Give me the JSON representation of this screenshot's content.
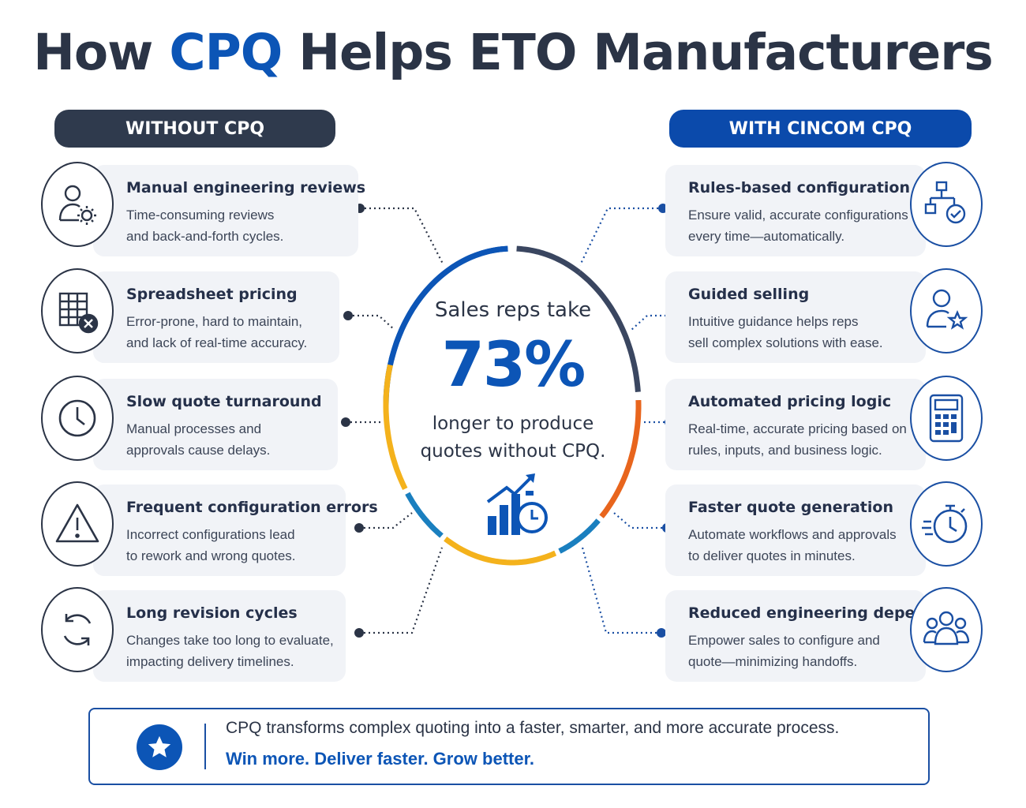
{
  "title": {
    "part1": "How ",
    "accent": "CPQ",
    "part2": " Helps ETO Manufacturers"
  },
  "without_header": "WITHOUT CPQ",
  "with_header": "WITH CINCOM CPQ",
  "without_items": [
    {
      "icon": "person-gear-icon",
      "title": "Manual engineering reviews",
      "line1": "Time-consuming reviews",
      "line2": "and back-and-forth cycles."
    },
    {
      "icon": "spreadsheet-x-icon",
      "title": "Spreadsheet pricing",
      "line1": "Error-prone, hard to maintain,",
      "line2": "and lack of real-time accuracy."
    },
    {
      "icon": "clock-icon",
      "title": "Slow quote turnaround",
      "line1": "Manual processes and",
      "line2": "approvals cause delays."
    },
    {
      "icon": "warning-icon",
      "title": "Frequent configuration errors",
      "line1": "Incorrect configurations lead",
      "line2": "to rework and wrong quotes."
    },
    {
      "icon": "refresh-cycle-icon",
      "title": "Long revision cycles",
      "line1": "Changes take too long to evaluate,",
      "line2": "impacting delivery timelines."
    }
  ],
  "with_items": [
    {
      "icon": "hierarchy-check-icon",
      "title": "Rules-based configuration",
      "line1": "Ensure valid, accurate configurations",
      "line2": "every time—automatically."
    },
    {
      "icon": "person-star-icon",
      "title": "Guided selling",
      "line1": "Intuitive guidance helps reps",
      "line2": "sell complex solutions with ease."
    },
    {
      "icon": "calculator-icon",
      "title": "Automated pricing logic",
      "line1": "Real-time, accurate pricing based on",
      "line2": "rules, inputs, and business logic."
    },
    {
      "icon": "stopwatch-icon",
      "title": "Faster quote generation",
      "line1": "Automate workflows and approvals",
      "line2": "to deliver quotes in minutes."
    },
    {
      "icon": "team-icon",
      "title": "Reduced engineering dependency",
      "line1": "Empower sales to configure and",
      "line2": "quote—minimizing handoffs."
    }
  ],
  "center": {
    "line1": "Sales reps take",
    "stat": "73%",
    "line2": "longer to produce",
    "line3": "quotes without CPQ.",
    "icon": "growth-chart-clock-icon"
  },
  "ring_colors": [
    "#0c55b6",
    "#3a4660",
    "#e8651d",
    "#1a7fbf",
    "#f4b21c"
  ],
  "footer": {
    "line1": "CPQ transforms complex quoting into a faster, smarter, and more accurate process.",
    "line2": "Win more. Deliver faster. Grow better.",
    "icon": "star-icon"
  }
}
